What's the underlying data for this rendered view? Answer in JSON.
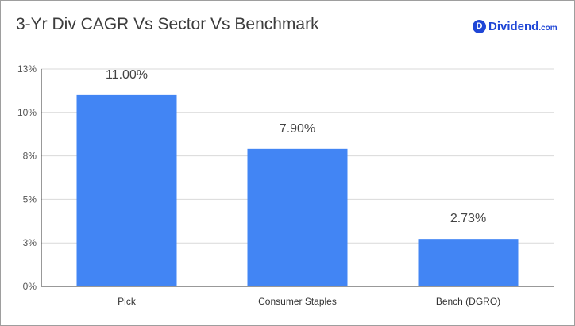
{
  "header": {
    "title": "3-Yr Div CAGR Vs Sector Vs Benchmark",
    "brand_mark": "D",
    "brand_name": "Dividend",
    "brand_tld": ".com"
  },
  "colors": {
    "bar": "#4285f4",
    "brand": "#1f46d6",
    "axis": "#333333",
    "grid": "#d9d9d9"
  },
  "chart_data": {
    "type": "bar",
    "title": "3-Yr Div CAGR Vs Sector Vs Benchmark",
    "categories": [
      "Pick",
      "Consumer Staples",
      "Bench (DGRO)"
    ],
    "values": [
      11.0,
      7.9,
      2.73
    ],
    "data_labels": [
      "11.00%",
      "7.90%",
      "2.73%"
    ],
    "ylim": [
      0,
      12.5
    ],
    "yticks": [
      0,
      2.5,
      5,
      7.5,
      10,
      12.5
    ],
    "ytick_labels": [
      "0%",
      "3%",
      "5%",
      "8%",
      "10%",
      "13%"
    ],
    "grid": true,
    "legend": "none"
  }
}
